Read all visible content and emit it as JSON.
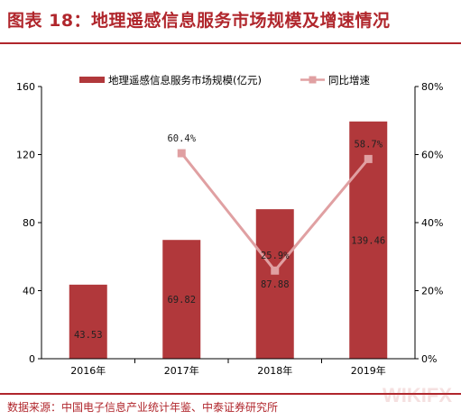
{
  "header": {
    "title": "图表 18：地理遥感信息服务市场规模及增速情况"
  },
  "footer": {
    "source": "数据来源：中国电子信息产业统计年鉴、中泰证券研究所",
    "watermark": "WIKIFX"
  },
  "colors": {
    "accent": "#b0262c",
    "bar": "#b1383b",
    "line": "#e0a0a2",
    "axis": "#000000"
  },
  "chart_data": {
    "type": "bar",
    "categories": [
      "2016年",
      "2017年",
      "2018年",
      "2019年"
    ],
    "series": [
      {
        "name": "地理遥感信息服务市场规模(亿元)",
        "type": "bar",
        "axis": "left",
        "values": [
          43.53,
          69.82,
          87.88,
          139.46
        ],
        "labels": [
          "43.53",
          "69.82",
          "87.88",
          "139.46"
        ]
      },
      {
        "name": "同比增速",
        "type": "line",
        "axis": "right",
        "values": [
          null,
          60.4,
          25.9,
          58.7
        ],
        "labels": [
          "",
          "60.4%",
          "25.9%",
          "58.7%"
        ]
      }
    ],
    "y_left": {
      "lim": [
        0,
        160
      ],
      "ticks": [
        "0",
        "40",
        "80",
        "120",
        "160"
      ]
    },
    "y_right": {
      "lim": [
        0,
        80
      ],
      "ticks": [
        "0%",
        "20%",
        "40%",
        "60%",
        "80%"
      ]
    },
    "legend_position": "top",
    "grid": false
  }
}
